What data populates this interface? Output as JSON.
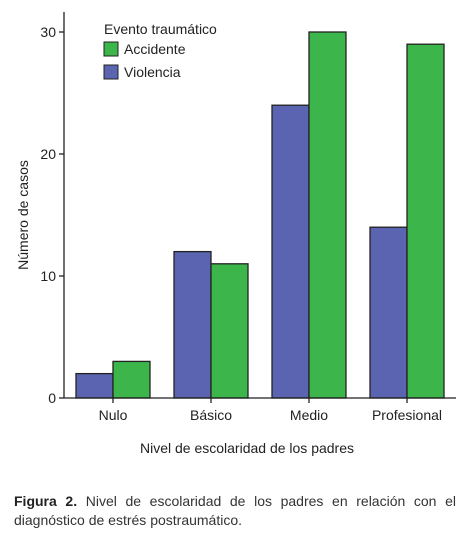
{
  "chart_data": {
    "type": "bar",
    "categories": [
      "Nulo",
      "Básico",
      "Medio",
      "Profesional"
    ],
    "series": [
      {
        "name": "Violencia",
        "values": [
          2,
          12,
          24,
          14
        ],
        "color": "#5b64b0"
      },
      {
        "name": "Accidente",
        "values": [
          3,
          11,
          30,
          29
        ],
        "color": "#3cb54a"
      }
    ],
    "xlabel": "Nivel de escolaridad de los padres",
    "ylabel": "Número de casos",
    "ylim": [
      0,
      32
    ],
    "yticks": [
      0,
      10,
      20,
      30
    ],
    "legend": {
      "title": "Evento traumático",
      "entries": [
        "Accidente",
        "Violencia"
      ],
      "placement": "top-left"
    },
    "grid": false
  },
  "caption": {
    "label": "Figura 2.",
    "text": " Nivel de escolaridad de los padres en relación con el diagnóstico de estrés postraumático."
  }
}
